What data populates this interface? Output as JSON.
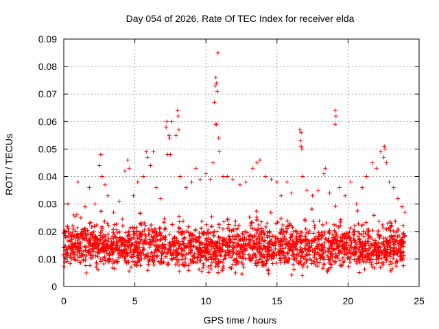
{
  "chart_data": {
    "type": "scatter",
    "title": "Day 054 of 2026, Rate Of TEC Index for receiver elda",
    "xlabel": "GPS time / hours",
    "ylabel": "ROTI / TECUs",
    "xlim": [
      0,
      25
    ],
    "ylim": [
      0,
      0.09
    ],
    "xticks": [
      0,
      5,
      10,
      15,
      20,
      25
    ],
    "xtick_labels": [
      "0",
      "5",
      "10",
      "15",
      "20",
      "25"
    ],
    "yticks": [
      0,
      0.01,
      0.02,
      0.03,
      0.04,
      0.05,
      0.06,
      0.07,
      0.08,
      0.09
    ],
    "ytick_labels": [
      "0",
      "0.01",
      "0.02",
      "0.03",
      "0.04",
      "0.05",
      "0.06",
      "0.07",
      "0.08",
      "0.09"
    ],
    "grid": true,
    "marker": "+",
    "color": "#ff0000",
    "series": [
      {
        "name": "ROTI",
        "points": [
          [
            0.1,
            0.013
          ],
          [
            0.3,
            0.03
          ],
          [
            0.5,
            0.018
          ],
          [
            0.7,
            0.026
          ],
          [
            1.0,
            0.038
          ],
          [
            1.2,
            0.025
          ],
          [
            1.5,
            0.029
          ],
          [
            1.8,
            0.036
          ],
          [
            2.2,
            0.03
          ],
          [
            2.5,
            0.044
          ],
          [
            2.6,
            0.048
          ],
          [
            2.7,
            0.04
          ],
          [
            2.9,
            0.037
          ],
          [
            3.1,
            0.033
          ],
          [
            3.5,
            0.027
          ],
          [
            3.9,
            0.031
          ],
          [
            4.3,
            0.042
          ],
          [
            4.5,
            0.046
          ],
          [
            4.6,
            0.043
          ],
          [
            4.9,
            0.033
          ],
          [
            5.2,
            0.038
          ],
          [
            5.6,
            0.04
          ],
          [
            5.8,
            0.049
          ],
          [
            5.9,
            0.047
          ],
          [
            6.1,
            0.044
          ],
          [
            6.3,
            0.049
          ],
          [
            6.5,
            0.036
          ],
          [
            6.8,
            0.032
          ],
          [
            7.2,
            0.058
          ],
          [
            7.25,
            0.06
          ],
          [
            7.4,
            0.055
          ],
          [
            7.45,
            0.054
          ],
          [
            7.6,
            0.06
          ],
          [
            7.5,
            0.048
          ],
          [
            7.3,
            0.048
          ],
          [
            8.0,
            0.064
          ],
          [
            8.05,
            0.062
          ],
          [
            8.1,
            0.057
          ],
          [
            7.9,
            0.055
          ],
          [
            8.2,
            0.04
          ],
          [
            8.6,
            0.036
          ],
          [
            9.0,
            0.038
          ],
          [
            9.3,
            0.043
          ],
          [
            9.6,
            0.039
          ],
          [
            10.0,
            0.041
          ],
          [
            10.3,
            0.039
          ],
          [
            10.5,
            0.045
          ],
          [
            10.6,
            0.067
          ],
          [
            10.65,
            0.073
          ],
          [
            10.7,
            0.076
          ],
          [
            10.75,
            0.074
          ],
          [
            10.8,
            0.071
          ],
          [
            10.7,
            0.059
          ],
          [
            10.75,
            0.059
          ],
          [
            10.85,
            0.085
          ],
          [
            10.9,
            0.054
          ],
          [
            10.95,
            0.049
          ],
          [
            11.2,
            0.04
          ],
          [
            11.5,
            0.04
          ],
          [
            11.9,
            0.039
          ],
          [
            12.4,
            0.037
          ],
          [
            12.8,
            0.038
          ],
          [
            13.3,
            0.043
          ],
          [
            13.6,
            0.045
          ],
          [
            13.8,
            0.046
          ],
          [
            14.2,
            0.04
          ],
          [
            14.6,
            0.039
          ],
          [
            15.0,
            0.038
          ],
          [
            15.3,
            0.033
          ],
          [
            15.7,
            0.038
          ],
          [
            16.0,
            0.034
          ],
          [
            16.6,
            0.057
          ],
          [
            16.7,
            0.056
          ],
          [
            16.65,
            0.053
          ],
          [
            16.7,
            0.051
          ],
          [
            16.75,
            0.05
          ],
          [
            16.8,
            0.04
          ],
          [
            17.1,
            0.035
          ],
          [
            17.5,
            0.033
          ],
          [
            17.9,
            0.035
          ],
          [
            18.3,
            0.041
          ],
          [
            18.4,
            0.043
          ],
          [
            18.7,
            0.034
          ],
          [
            19.1,
            0.064
          ],
          [
            19.15,
            0.062
          ],
          [
            19.1,
            0.059
          ],
          [
            19.4,
            0.036
          ],
          [
            19.8,
            0.033
          ],
          [
            20.2,
            0.038
          ],
          [
            20.6,
            0.03
          ],
          [
            21.0,
            0.036
          ],
          [
            21.3,
            0.04
          ],
          [
            21.7,
            0.045
          ],
          [
            22.0,
            0.043
          ],
          [
            22.3,
            0.049
          ],
          [
            22.5,
            0.047
          ],
          [
            22.55,
            0.051
          ],
          [
            22.6,
            0.05
          ],
          [
            22.7,
            0.045
          ],
          [
            22.9,
            0.038
          ],
          [
            23.2,
            0.036
          ],
          [
            23.5,
            0.032
          ],
          [
            23.8,
            0.029
          ],
          [
            24.0,
            0.027
          ]
        ],
        "density_band": {
          "x_range": [
            0,
            24
          ],
          "center": 0.012,
          "typical_max": 0.025,
          "typical_min": 0.003
        }
      }
    ]
  }
}
